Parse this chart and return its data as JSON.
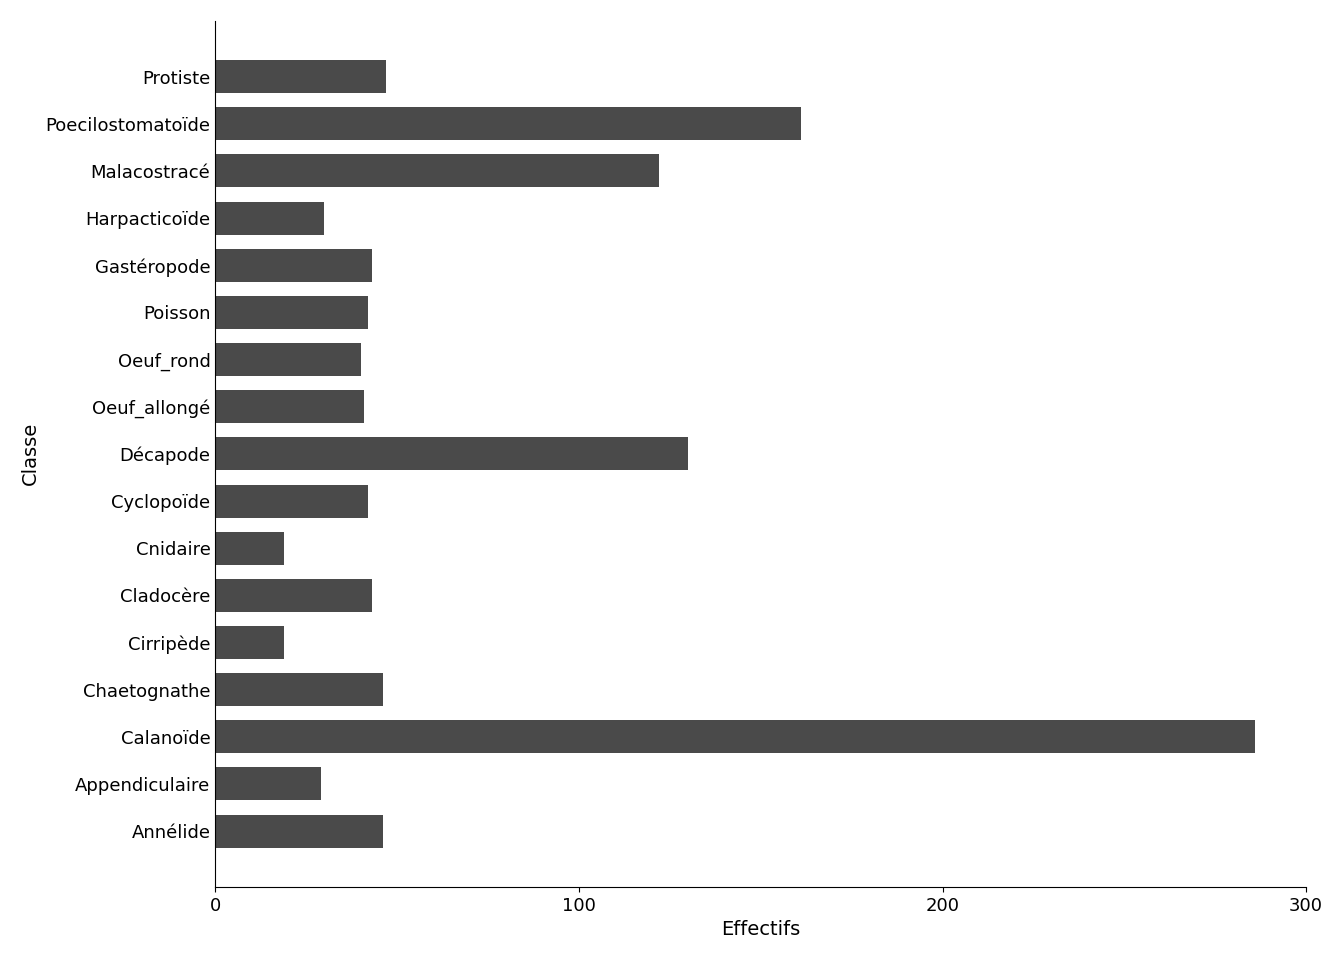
{
  "categories": [
    "Protiste",
    "Poecilostomatoïde",
    "Malacostracé",
    "Harpacticoïde",
    "Gastéropode",
    "Poisson",
    "Oeuf_rond",
    "Oeuf_allongé",
    "Décapode",
    "Cyclopoïde",
    "Cnidaire",
    "Cladocère",
    "Cirripède",
    "Chaetognathe",
    "Calanoïde",
    "Appendiculaire",
    "Annélide"
  ],
  "values": [
    47,
    161,
    122,
    30,
    43,
    42,
    40,
    41,
    130,
    42,
    19,
    43,
    19,
    46,
    286,
    29,
    46
  ],
  "bar_color": "#4a4a4a",
  "xlabel": "Effectifs",
  "ylabel": "Classe",
  "xlim": [
    0,
    300
  ],
  "xticks": [
    0,
    100,
    200,
    300
  ],
  "background_color": "#ffffff",
  "tick_fontsize": 13,
  "label_fontsize": 14,
  "bar_height": 0.7
}
